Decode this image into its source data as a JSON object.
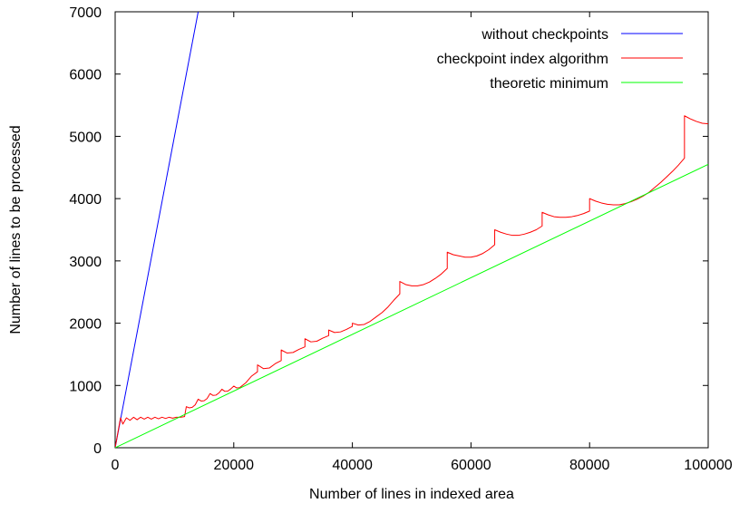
{
  "chart_data": {
    "type": "line",
    "title": "",
    "xlabel": "Number of lines in indexed area",
    "ylabel": "Number of lines to be processed",
    "xlim": [
      0,
      100000
    ],
    "ylim": [
      0,
      7000
    ],
    "x_ticks": [
      0,
      20000,
      40000,
      60000,
      80000,
      100000
    ],
    "y_ticks": [
      0,
      1000,
      2000,
      3000,
      4000,
      5000,
      6000,
      7000
    ],
    "grid": false,
    "legend_position": "top-right",
    "series": [
      {
        "name": "without checkpoints",
        "color": "#0000ff",
        "points": [
          [
            0,
            0
          ],
          [
            14000,
            7000
          ]
        ]
      },
      {
        "name": "checkpoint index algorithm",
        "color": "#ff0000",
        "points": [
          [
            0,
            0
          ],
          [
            900,
            480
          ],
          [
            1300,
            380
          ],
          [
            1900,
            480
          ],
          [
            2500,
            440
          ],
          [
            3100,
            490
          ],
          [
            3700,
            450
          ],
          [
            4300,
            490
          ],
          [
            4900,
            460
          ],
          [
            5500,
            490
          ],
          [
            6100,
            460
          ],
          [
            6700,
            490
          ],
          [
            7300,
            465
          ],
          [
            7900,
            490
          ],
          [
            8500,
            470
          ],
          [
            9100,
            490
          ],
          [
            9700,
            475
          ],
          [
            10300,
            490
          ],
          [
            11000,
            490
          ],
          [
            11700,
            500
          ],
          [
            12000,
            660
          ],
          [
            12500,
            640
          ],
          [
            13000,
            650
          ],
          [
            13500,
            690
          ],
          [
            14000,
            780
          ],
          [
            14500,
            750
          ],
          [
            15000,
            755
          ],
          [
            15500,
            790
          ],
          [
            16000,
            870
          ],
          [
            16500,
            840
          ],
          [
            17000,
            845
          ],
          [
            17500,
            880
          ],
          [
            18000,
            940
          ],
          [
            18500,
            905
          ],
          [
            19000,
            910
          ],
          [
            19500,
            945
          ],
          [
            20000,
            990
          ],
          [
            20500,
            960
          ],
          [
            21000,
            965
          ],
          [
            22000,
            1040
          ],
          [
            23000,
            1150
          ],
          [
            24000,
            1220
          ],
          [
            24000,
            1330
          ],
          [
            25000,
            1270
          ],
          [
            26000,
            1280
          ],
          [
            27000,
            1350
          ],
          [
            28000,
            1400
          ],
          [
            28000,
            1570
          ],
          [
            29000,
            1520
          ],
          [
            30000,
            1530
          ],
          [
            31000,
            1580
          ],
          [
            32000,
            1620
          ],
          [
            32000,
            1750
          ],
          [
            33000,
            1700
          ],
          [
            34000,
            1710
          ],
          [
            35000,
            1760
          ],
          [
            36000,
            1800
          ],
          [
            36000,
            1890
          ],
          [
            37000,
            1850
          ],
          [
            38000,
            1860
          ],
          [
            39000,
            1900
          ],
          [
            40000,
            1950
          ],
          [
            40000,
            2000
          ],
          [
            41000,
            1970
          ],
          [
            42000,
            1980
          ],
          [
            43000,
            2030
          ],
          [
            44000,
            2100
          ],
          [
            45000,
            2170
          ],
          [
            46000,
            2260
          ],
          [
            47000,
            2370
          ],
          [
            48000,
            2470
          ],
          [
            48000,
            2670
          ],
          [
            49000,
            2620
          ],
          [
            50000,
            2600
          ],
          [
            51000,
            2600
          ],
          [
            52000,
            2620
          ],
          [
            53000,
            2660
          ],
          [
            54000,
            2720
          ],
          [
            55000,
            2790
          ],
          [
            56000,
            2880
          ],
          [
            56000,
            3140
          ],
          [
            57000,
            3100
          ],
          [
            58000,
            3080
          ],
          [
            59000,
            3060
          ],
          [
            60000,
            3060
          ],
          [
            61000,
            3080
          ],
          [
            62000,
            3120
          ],
          [
            63000,
            3180
          ],
          [
            64000,
            3260
          ],
          [
            64000,
            3500
          ],
          [
            65000,
            3460
          ],
          [
            66000,
            3430
          ],
          [
            67000,
            3410
          ],
          [
            68000,
            3410
          ],
          [
            69000,
            3430
          ],
          [
            70000,
            3460
          ],
          [
            71000,
            3500
          ],
          [
            72000,
            3560
          ],
          [
            72000,
            3780
          ],
          [
            73000,
            3740
          ],
          [
            74000,
            3710
          ],
          [
            75000,
            3700
          ],
          [
            76000,
            3700
          ],
          [
            77000,
            3710
          ],
          [
            78000,
            3730
          ],
          [
            79000,
            3760
          ],
          [
            80000,
            3800
          ],
          [
            80000,
            4000
          ],
          [
            81000,
            3960
          ],
          [
            82000,
            3930
          ],
          [
            83000,
            3910
          ],
          [
            84000,
            3900
          ],
          [
            85000,
            3900
          ],
          [
            86000,
            3920
          ],
          [
            87000,
            3950
          ],
          [
            88000,
            3990
          ],
          [
            89000,
            4040
          ],
          [
            90000,
            4100
          ],
          [
            91000,
            4180
          ],
          [
            92000,
            4260
          ],
          [
            93000,
            4350
          ],
          [
            94000,
            4440
          ],
          [
            95000,
            4540
          ],
          [
            96000,
            4650
          ],
          [
            96000,
            5330
          ],
          [
            97000,
            5280
          ],
          [
            98000,
            5240
          ],
          [
            99000,
            5210
          ],
          [
            100000,
            5200
          ]
        ]
      },
      {
        "name": "theoretic minimum",
        "color": "#00ff00",
        "points": [
          [
            0,
            0
          ],
          [
            100000,
            4550
          ]
        ]
      }
    ]
  }
}
